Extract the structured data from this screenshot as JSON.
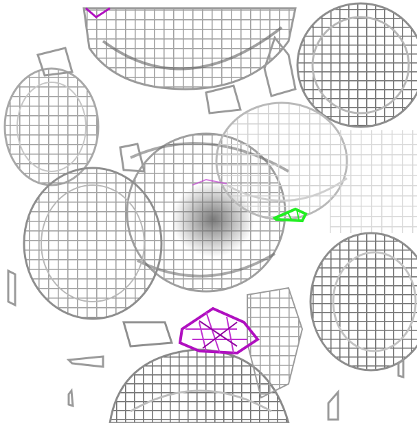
{
  "scene": {
    "kind": "3D wireframe mesh rendering of molecular density surfaces",
    "background_color": "#ffffff",
    "mesh_color": "#b8b8b8",
    "mesh_shadow_color": "#5a5a5a",
    "highlight_colors": {
      "magenta": "#b010c0",
      "green": "#22ee22"
    },
    "text_labels": []
  }
}
